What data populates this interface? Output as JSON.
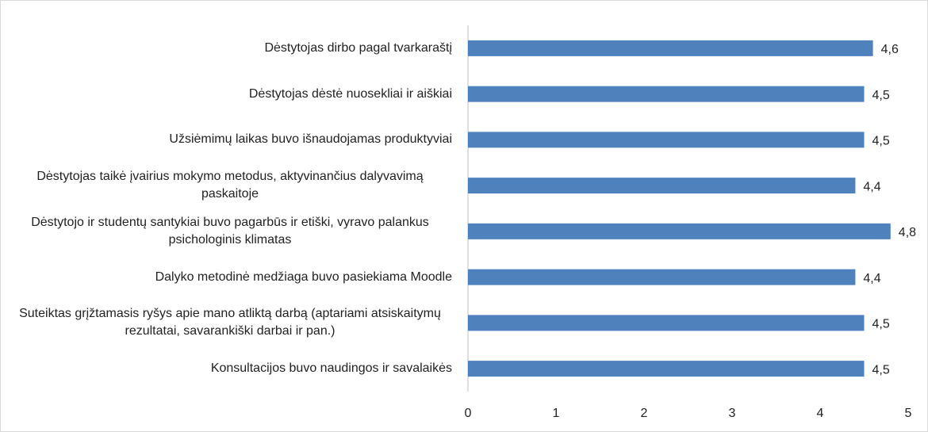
{
  "chart_data": {
    "type": "bar",
    "orientation": "horizontal",
    "categories": [
      "Dėstytojas dirbo pagal tvarkaraštį",
      "Dėstytojas dėstė nuosekliai ir aiškiai",
      "Užsiėmimų laikas buvo išnaudojamas produktyviai",
      "Dėstytojas taikė įvairius mokymo metodus, aktyvinančius dalyvavimą paskaitoje",
      "Dėstytojo ir studentų santykiai buvo pagarbūs ir etiški, vyravo palankus psichologinis klimatas",
      "Dalyko metodinė medžiaga buvo pasiekiama Moodle",
      "Suteiktas grįžtamasis ryšys apie mano atliktą darbą (aptariami atsiskaitymų rezultatai, savarankiški darbai ir pan.)",
      "Konsultacijos buvo naudingos ir savalaikės"
    ],
    "values": [
      4.6,
      4.5,
      4.5,
      4.4,
      4.8,
      4.4,
      4.5,
      4.5
    ],
    "value_labels": [
      "4,6",
      "4,5",
      "4,5",
      "4,4",
      "4,8",
      "4,4",
      "4,5",
      "4,5"
    ],
    "color": "#4f81bd",
    "xlim": [
      0,
      5
    ],
    "xticks": [
      0,
      1,
      2,
      3,
      4,
      5
    ]
  }
}
